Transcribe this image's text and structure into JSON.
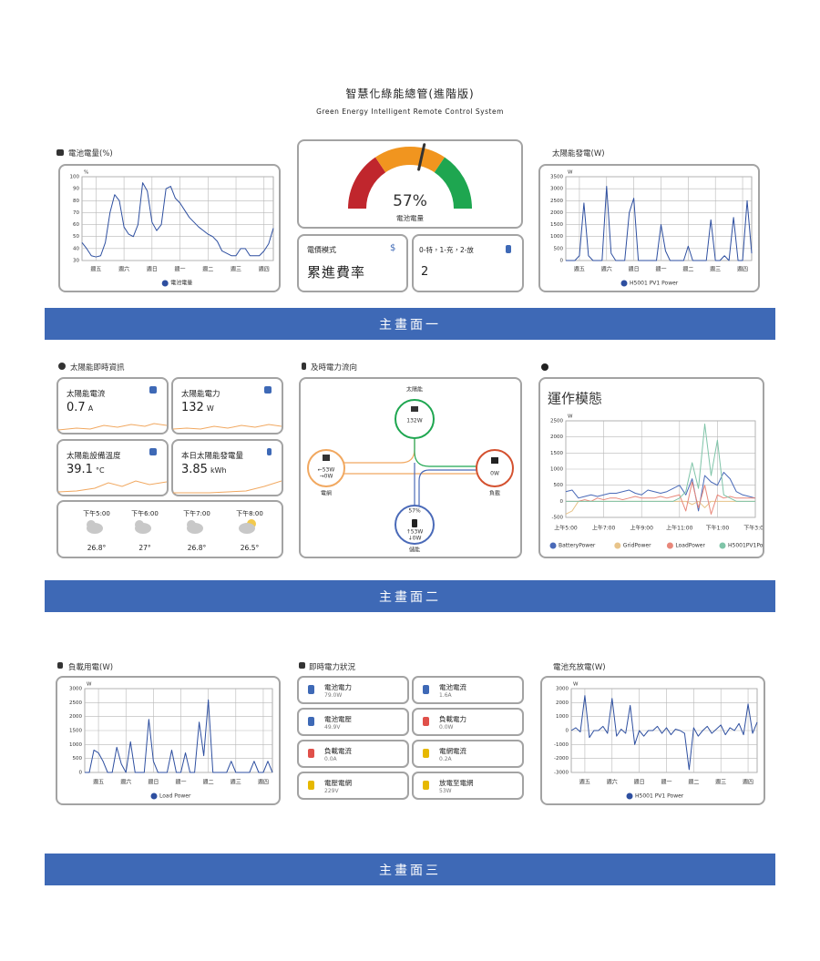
{
  "header": {
    "title": "智慧化綠能總管(進階版)",
    "subtitle": "Green Energy Intelligent Remote Control System"
  },
  "chart_data": [
    {
      "type": "line",
      "title": "電池電量(%)",
      "y_unit": "%",
      "categories": [
        null,
        null,
        null,
        "週五",
        null,
        null,
        null,
        null,
        null,
        "週六",
        null,
        null,
        null,
        null,
        null,
        "週日",
        null,
        null,
        null,
        null,
        null,
        "週一",
        null,
        null,
        null,
        null,
        null,
        "週二",
        null,
        null,
        null,
        null,
        null,
        "週三",
        null,
        null,
        null,
        null,
        null,
        "週四",
        null,
        null
      ],
      "ylim": [
        30,
        100
      ],
      "yticks": [
        30,
        40,
        50,
        60,
        70,
        80,
        90,
        100
      ],
      "grid": true,
      "series": [
        {
          "name": "電池電量",
          "color": "#2e4fa0",
          "values": [
            45,
            40,
            34,
            33,
            34,
            45,
            70,
            85,
            80,
            58,
            52,
            50,
            60,
            95,
            88,
            62,
            55,
            60,
            90,
            92,
            82,
            78,
            72,
            66,
            62,
            58,
            55,
            52,
            50,
            46,
            38,
            36,
            34,
            34,
            40,
            40,
            34,
            34,
            34,
            38,
            44,
            57
          ]
        }
      ]
    },
    {
      "type": "gauge",
      "title": "電池電量",
      "values": [
        57
      ],
      "value_labels": [
        "57%"
      ],
      "ylim": [
        0,
        100
      ]
    },
    {
      "type": "line",
      "title": "太陽能發電(W)",
      "y_unit": "W",
      "categories": [
        null,
        null,
        null,
        "週五",
        null,
        null,
        null,
        null,
        null,
        "週六",
        null,
        null,
        null,
        null,
        null,
        "週日",
        null,
        null,
        null,
        null,
        null,
        "週一",
        null,
        null,
        null,
        null,
        null,
        "週二",
        null,
        null,
        null,
        null,
        null,
        "週三",
        null,
        null,
        null,
        null,
        null,
        "週四",
        null,
        null
      ],
      "ylim": [
        0,
        3500
      ],
      "yticks": [
        0,
        500,
        1000,
        1500,
        2000,
        2500,
        3000,
        3500
      ],
      "grid": true,
      "series": [
        {
          "name": "H5001 PV1 Power",
          "color": "#2e4fa0",
          "values": [
            0,
            0,
            0,
            200,
            2400,
            200,
            0,
            0,
            0,
            3100,
            300,
            0,
            0,
            0,
            2000,
            2600,
            0,
            0,
            0,
            0,
            0,
            1500,
            400,
            0,
            0,
            0,
            0,
            600,
            0,
            0,
            0,
            0,
            1700,
            0,
            0,
            200,
            0,
            1800,
            0,
            0,
            2500,
            300
          ]
        }
      ]
    },
    {
      "type": "line",
      "title": "運作模態",
      "y_unit": "W",
      "categories": [
        "上午5:00",
        null,
        null,
        null,
        null,
        null,
        "上午7:00",
        null,
        null,
        null,
        null,
        null,
        "上午9:00",
        null,
        null,
        null,
        null,
        null,
        "上午11:00",
        null,
        null,
        null,
        null,
        null,
        "下午1:00",
        null,
        null,
        null,
        null,
        null,
        "下午3:00"
      ],
      "ylim": [
        -500,
        2500
      ],
      "yticks": [
        -500,
        0,
        500,
        1000,
        1500,
        2000,
        2500
      ],
      "grid": true,
      "series": [
        {
          "name": "BatteryPower",
          "color": "#4a6ab8",
          "values": [
            300,
            350,
            100,
            150,
            200,
            150,
            200,
            250,
            250,
            300,
            350,
            250,
            200,
            350,
            300,
            250,
            300,
            400,
            500,
            200,
            700,
            -300,
            800,
            600,
            500,
            900,
            700,
            300,
            200,
            150,
            100
          ]
        },
        {
          "name": "GridPower",
          "color": "#e8c48a",
          "values": [
            -400,
            -300,
            0,
            0,
            0,
            0,
            0,
            0,
            0,
            0,
            0,
            0,
            0,
            0,
            0,
            0,
            0,
            0,
            0,
            0,
            -100,
            0,
            -200,
            0,
            0,
            0,
            0,
            0,
            0,
            0,
            0
          ]
        },
        {
          "name": "LoadPower",
          "color": "#e8877a",
          "values": [
            0,
            0,
            0,
            50,
            0,
            100,
            50,
            100,
            100,
            50,
            100,
            150,
            100,
            100,
            100,
            150,
            100,
            150,
            200,
            -300,
            600,
            -200,
            500,
            -400,
            200,
            100,
            150,
            100,
            100,
            100,
            100
          ]
        },
        {
          "name": "H5001PV1Power",
          "color": "#7fc4a8",
          "values": [
            0,
            0,
            0,
            0,
            0,
            0,
            0,
            0,
            0,
            0,
            0,
            0,
            0,
            0,
            0,
            0,
            0,
            0,
            100,
            300,
            1200,
            400,
            2400,
            800,
            1900,
            200,
            100,
            0,
            0,
            0,
            0
          ]
        }
      ]
    },
    {
      "type": "line",
      "title": "負載用電(W)",
      "y_unit": "W",
      "categories": [
        null,
        null,
        null,
        "週五",
        null,
        null,
        null,
        null,
        null,
        "週六",
        null,
        null,
        null,
        null,
        null,
        "週日",
        null,
        null,
        null,
        null,
        null,
        "週一",
        null,
        null,
        null,
        null,
        null,
        "週二",
        null,
        null,
        null,
        null,
        null,
        "週三",
        null,
        null,
        null,
        null,
        null,
        "週四",
        null,
        null
      ],
      "ylim": [
        0,
        3000
      ],
      "yticks": [
        0,
        500,
        1000,
        1500,
        2000,
        2500,
        3000
      ],
      "grid": true,
      "series": [
        {
          "name": "Load Power",
          "color": "#2e4fa0",
          "values": [
            0,
            0,
            800,
            700,
            400,
            0,
            0,
            900,
            300,
            0,
            1100,
            0,
            0,
            0,
            1900,
            400,
            0,
            0,
            0,
            800,
            0,
            0,
            700,
            0,
            0,
            1800,
            600,
            2600,
            0,
            0,
            0,
            0,
            400,
            0,
            0,
            0,
            0,
            400,
            0,
            0,
            400,
            0
          ]
        }
      ]
    },
    {
      "type": "line",
      "title": "電池充放電(W)",
      "y_unit": "W",
      "categories": [
        null,
        null,
        null,
        "週五",
        null,
        null,
        null,
        null,
        null,
        "週六",
        null,
        null,
        null,
        null,
        null,
        "週日",
        null,
        null,
        null,
        null,
        null,
        "週一",
        null,
        null,
        null,
        null,
        null,
        "週二",
        null,
        null,
        null,
        null,
        null,
        "週三",
        null,
        null,
        null,
        null,
        null,
        "週四",
        null,
        null
      ],
      "ylim": [
        -3000,
        3000
      ],
      "yticks": [
        -3000,
        -2000,
        -1000,
        0,
        1000,
        2000,
        3000
      ],
      "grid": true,
      "series": [
        {
          "name": "H5001 PV1 Power",
          "color": "#2e4fa0",
          "values": [
            0,
            200,
            -100,
            2500,
            -500,
            0,
            0,
            300,
            -200,
            2300,
            -400,
            100,
            -200,
            1800,
            -1000,
            0,
            -400,
            0,
            0,
            300,
            -200,
            200,
            -300,
            100,
            0,
            -200,
            -2800,
            200,
            -400,
            0,
            300,
            -200,
            100,
            400,
            -300,
            200,
            0,
            500,
            -300,
            1900,
            -200,
            600
          ]
        }
      ]
    }
  ],
  "price_mode": {
    "label": "電價模式",
    "symbol": "$",
    "value": "累進費率"
  },
  "mode_setting": {
    "label": "0-特，1-充，2-放",
    "value": "2"
  },
  "banners": [
    "主畫面一",
    "主畫面二",
    "主畫面三"
  ],
  "solar_info": {
    "title": "太陽能即時資訊",
    "cards": [
      {
        "label": "太陽能電流",
        "value": "0.7",
        "unit": "A"
      },
      {
        "label": "太陽能電力",
        "value": "132",
        "unit": "W"
      },
      {
        "label": "太陽能設備溫度",
        "value": "39.1",
        "unit": "°C"
      },
      {
        "label": "本日太陽能發電量",
        "value": "3.85",
        "unit": "kWh"
      }
    ],
    "weather": [
      {
        "time": "下午5:00",
        "temp": "26.8°"
      },
      {
        "time": "下午6:00",
        "temp": "27°"
      },
      {
        "time": "下午7:00",
        "temp": "26.8°"
      },
      {
        "time": "下午8:00",
        "temp": "26.5°"
      }
    ]
  },
  "power_flow": {
    "title": "及時電力流向",
    "solar": {
      "label": "太陽能",
      "value": "132W"
    },
    "grid": {
      "label": "電網",
      "in": "←53W",
      "out": "→0W"
    },
    "load": {
      "label": "負載",
      "value": "0W"
    },
    "storage": {
      "label": "儲能",
      "soc": "57%",
      "up": "↑53W",
      "down": "↓0W"
    }
  },
  "status": {
    "title": "即時電力狀況",
    "items": [
      {
        "label": "電池電力",
        "value": "79.0W"
      },
      {
        "label": "電池電流",
        "value": "1.6A"
      },
      {
        "label": "電池電壓",
        "value": "49.9V"
      },
      {
        "label": "負載電力",
        "value": "0.0W"
      },
      {
        "label": "負載電流",
        "value": "0.0A"
      },
      {
        "label": "電網電流",
        "value": "0.2A"
      },
      {
        "label": "電壓電網",
        "value": "229V"
      },
      {
        "label": "放電至電網",
        "value": "53W"
      }
    ]
  }
}
